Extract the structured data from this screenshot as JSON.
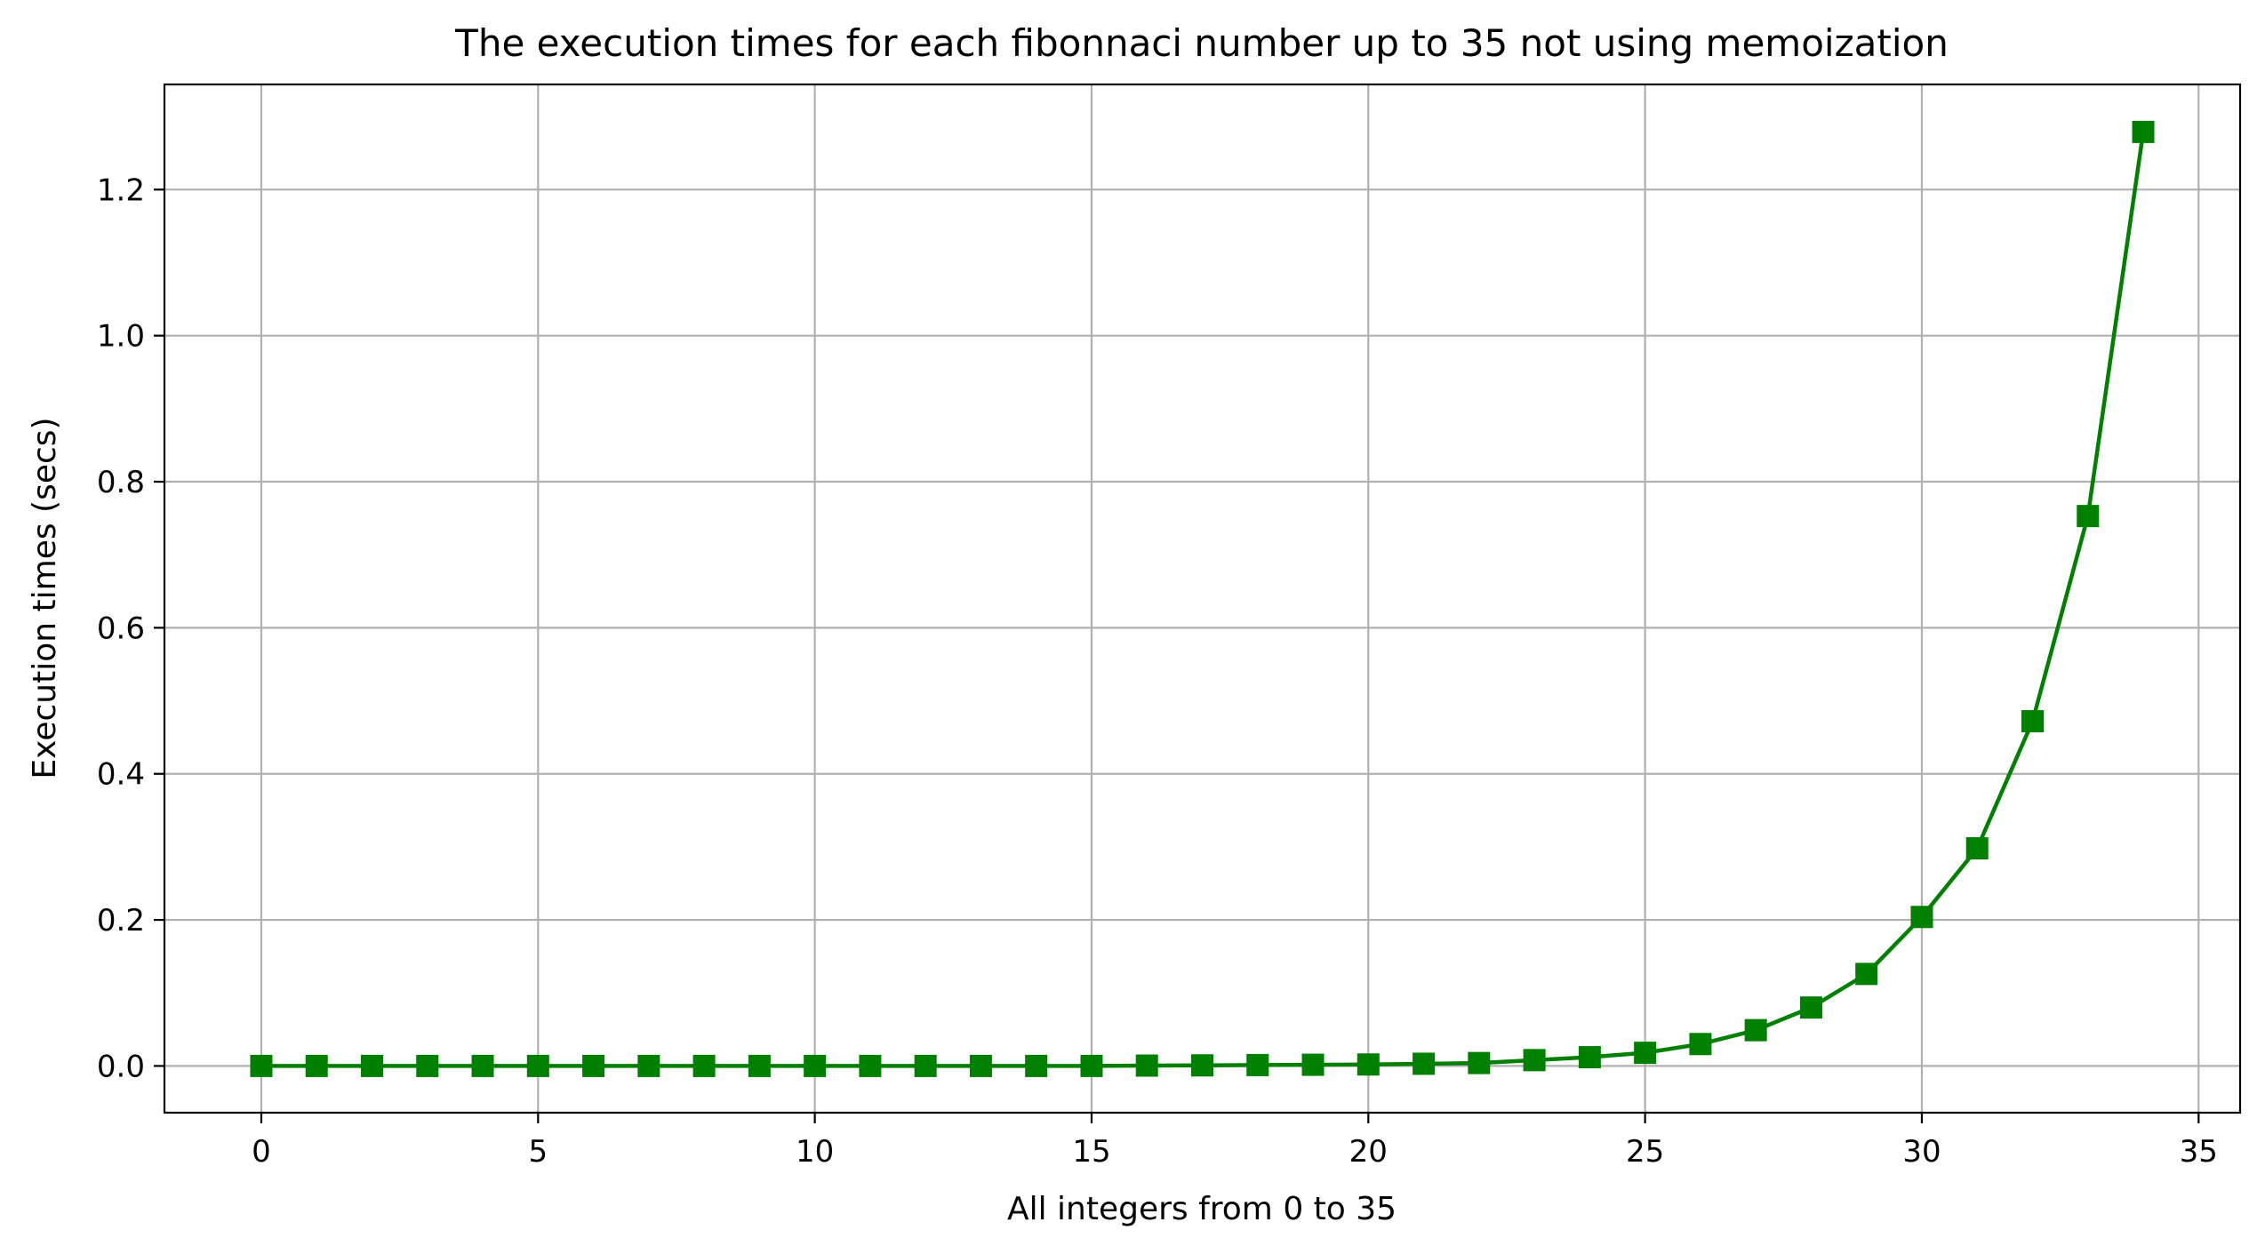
{
  "chart_data": {
    "type": "line",
    "title": "The execution times for each fibonnaci number up to 35 not using memoization",
    "xlabel": "All integers from 0 to 35",
    "ylabel": "Execution times (secs)",
    "xlim": [
      -1.75,
      35.75
    ],
    "ylim": [
      -0.064,
      1.344
    ],
    "x_ticks": [
      0,
      5,
      10,
      15,
      20,
      25,
      30,
      35
    ],
    "y_ticks": [
      0.0,
      0.2,
      0.4,
      0.6,
      0.8,
      1.0,
      1.2
    ],
    "x_tick_labels": [
      "0",
      "5",
      "10",
      "15",
      "20",
      "25",
      "30",
      "35"
    ],
    "y_tick_labels": [
      "0.0",
      "0.2",
      "0.4",
      "0.6",
      "0.8",
      "1.0",
      "1.2"
    ],
    "grid": true,
    "legend": "none",
    "series": [
      {
        "color": "#008000",
        "marker": "square",
        "x": [
          0,
          1,
          2,
          3,
          4,
          5,
          6,
          7,
          8,
          9,
          10,
          11,
          12,
          13,
          14,
          15,
          16,
          17,
          18,
          19,
          20,
          21,
          22,
          23,
          24,
          25,
          26,
          27,
          28,
          29,
          30,
          31,
          32,
          33,
          34
        ],
        "values": [
          0.0,
          0.0,
          0.0,
          0.0,
          0.0,
          0.0,
          0.0,
          0.0,
          0.0,
          0.0,
          0.0,
          0.0,
          0.0,
          0.0,
          0.0,
          0.0,
          0.0005,
          0.0008,
          0.0012,
          0.0016,
          0.002,
          0.003,
          0.004,
          0.008,
          0.012,
          0.018,
          0.03,
          0.049,
          0.08,
          0.126,
          0.204,
          0.298,
          0.472,
          0.753,
          1.279
        ]
      }
    ]
  }
}
